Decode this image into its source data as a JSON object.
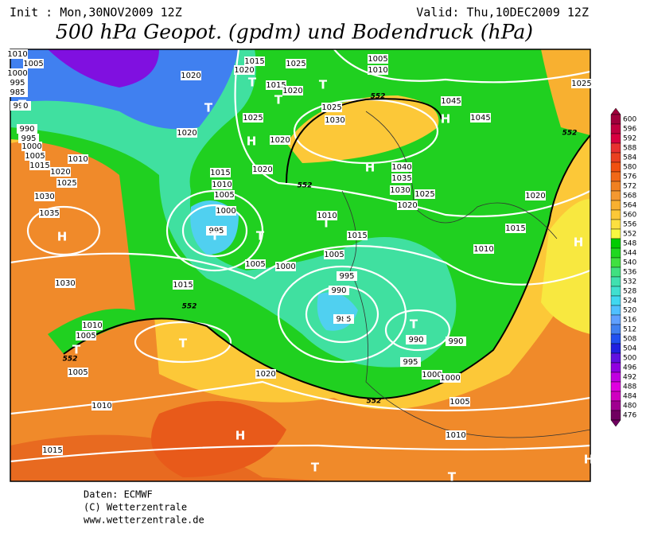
{
  "header": {
    "init": "Init : Mon,30NOV2009 12Z",
    "valid": "Valid: Thu,10DEC2009 12Z",
    "title": "500 hPa Geopot. (gpdm) und Bodendruck (hPa)"
  },
  "footer": {
    "source": "Daten: ECMWF",
    "copyright": "(C) Wetterzentrale",
    "url": "www.wetterzentrale.de"
  },
  "colorbar": {
    "levels": [
      600,
      596,
      592,
      588,
      584,
      580,
      576,
      572,
      568,
      564,
      560,
      556,
      552,
      548,
      544,
      540,
      536,
      532,
      528,
      524,
      520,
      516,
      512,
      508,
      504,
      500,
      496,
      492,
      488,
      484,
      480,
      476
    ],
    "colors": [
      "#a0003c",
      "#c00040",
      "#d80040",
      "#e83030",
      "#ea4020",
      "#f05010",
      "#f06818",
      "#f08020",
      "#f49830",
      "#f8b030",
      "#fcc838",
      "#fce040",
      "#f8f840",
      "#00cc00",
      "#20d820",
      "#40e040",
      "#40e080",
      "#40e0b0",
      "#40e0d0",
      "#40d8f0",
      "#50c0ff",
      "#60a0ff",
      "#4080f0",
      "#2050f0",
      "#2020e0",
      "#6010e0",
      "#9000e0",
      "#c000e0",
      "#e000e0",
      "#d000c0",
      "#a00090",
      "#700060"
    ]
  },
  "map": {
    "isobar_labels": [
      1010,
      1005,
      1000,
      995,
      985,
      990,
      990,
      995,
      1000,
      1005,
      1015,
      1020,
      1010,
      1025,
      1030,
      1035,
      1030,
      1015,
      1010,
      1005,
      1005,
      1010,
      1015,
      1020,
      1015,
      1020,
      1015,
      1020,
      1025,
      1005,
      1010,
      1025,
      1030,
      1045,
      1045,
      1025,
      1020,
      1020,
      1025,
      1020,
      1015,
      1010,
      1005,
      1000,
      995,
      1005,
      1000,
      1020,
      1010,
      1015,
      1005,
      995,
      990,
      985,
      1040,
      1035,
      1030,
      1025,
      1020,
      1015,
      1010,
      1020,
      990,
      990,
      995,
      1000,
      1000,
      1005,
      1010
    ],
    "centers": [
      "T",
      "H",
      "T",
      "T",
      "H",
      "T",
      "T",
      "T",
      "T",
      "T",
      "H",
      "H",
      "H",
      "T",
      "H",
      "T",
      "T",
      "T",
      "T",
      "T",
      "H"
    ],
    "contour_labels": [
      552,
      552,
      552,
      552,
      552,
      552
    ]
  }
}
